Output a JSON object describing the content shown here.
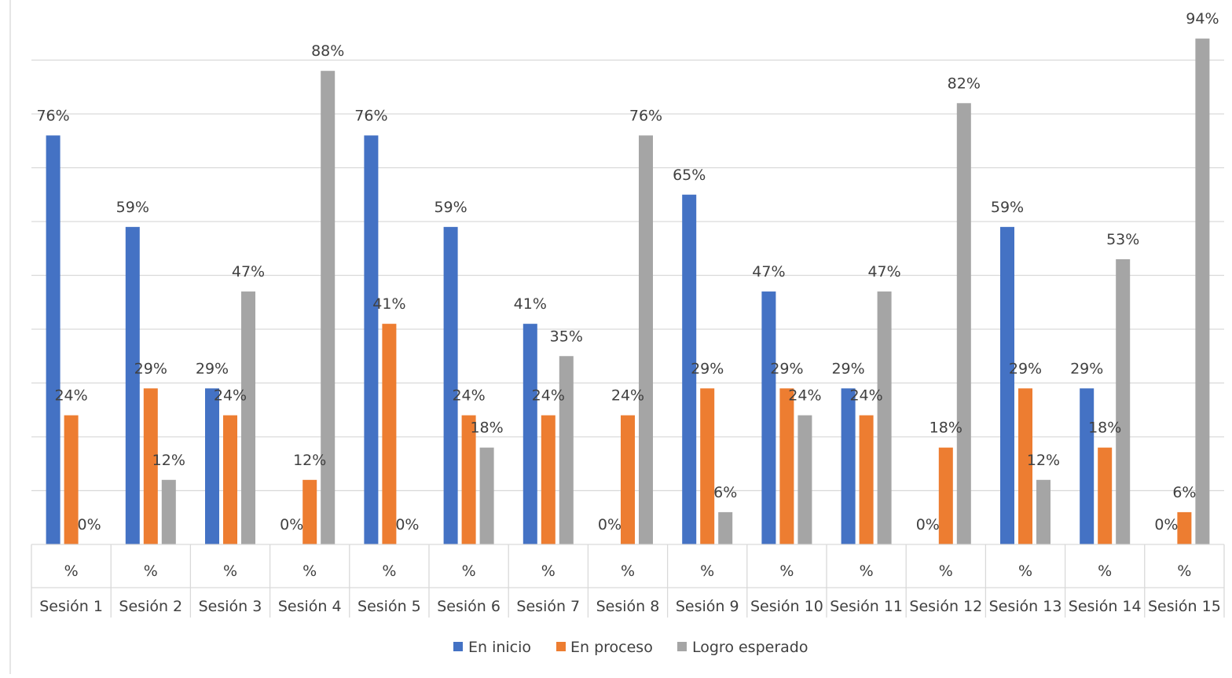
{
  "colors": {
    "en_inicio": "#4472C4",
    "en_proceso": "#ED7D31",
    "logro_esperado": "#A5A5A5",
    "gridline": "#D9D9D9",
    "text": "#404040"
  },
  "chart_data": {
    "type": "bar",
    "title": "",
    "xlabel": "",
    "ylabel": "",
    "ylim": [
      0,
      100
    ],
    "grid": true,
    "legend_position": "bottom",
    "category_sublabel": "%",
    "categories": [
      "Sesión 1",
      "Sesión 2",
      "Sesión 3",
      "Sesión 4",
      "Sesión 5",
      "Sesión 6",
      "Sesión 7",
      "Sesión 8",
      "Sesión 9",
      "Sesión 10",
      "Sesión 11",
      "Sesión 12",
      "Sesión 13",
      "Sesión 14",
      "Sesión 15"
    ],
    "series": [
      {
        "name": "En inicio",
        "color_key": "en_inicio",
        "values": [
          76,
          59,
          29,
          0,
          76,
          59,
          41,
          0,
          65,
          47,
          29,
          0,
          59,
          29,
          0
        ],
        "labels": [
          "76%",
          "59%",
          "29%",
          "0%",
          "76%",
          "59%",
          "41%",
          "0%",
          "65%",
          "47%",
          "29%",
          "0%",
          "59%",
          "29%",
          "0%"
        ]
      },
      {
        "name": "En proceso",
        "color_key": "en_proceso",
        "values": [
          24,
          29,
          24,
          12,
          41,
          24,
          24,
          24,
          29,
          29,
          24,
          18,
          29,
          18,
          6
        ],
        "labels": [
          "24%",
          "29%",
          "24%",
          "12%",
          "41%",
          "24%",
          "24%",
          "24%",
          "29%",
          "29%",
          "24%",
          "18%",
          "29%",
          "18%",
          "6%"
        ]
      },
      {
        "name": "Logro esperado",
        "color_key": "logro_esperado",
        "values": [
          0,
          12,
          47,
          88,
          0,
          18,
          35,
          76,
          6,
          24,
          47,
          82,
          12,
          53,
          94
        ],
        "labels": [
          "0%",
          "12%",
          "47%",
          "88%",
          "0%",
          "18%",
          "35%",
          "76%",
          "6%",
          "24%",
          "47%",
          "82%",
          "12%",
          "53%",
          "94%"
        ]
      }
    ]
  }
}
